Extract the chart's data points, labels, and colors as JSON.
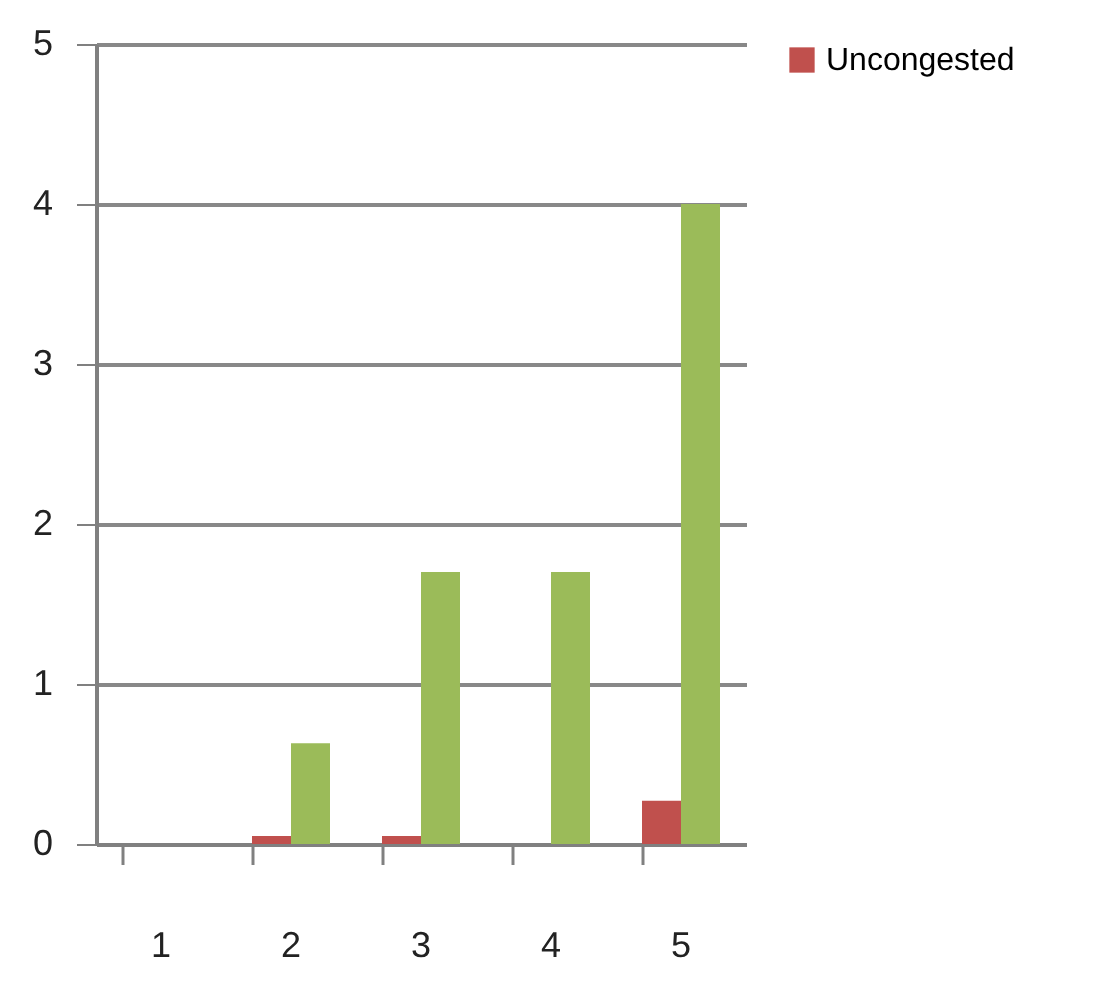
{
  "chart_data": {
    "type": "bar",
    "categories": [
      "1",
      "2",
      "3",
      "4",
      "5"
    ],
    "series": [
      {
        "name": "Uncongested",
        "color": "#c0504d",
        "values": [
          0,
          0.05,
          0.05,
          0,
          0.27
        ]
      },
      {
        "color": "#9bbb59",
        "values": [
          0,
          0.63,
          1.7,
          1.7,
          4.0
        ]
      }
    ],
    "ylim": [
      0,
      5
    ],
    "yticks": [
      0,
      1,
      2,
      3,
      4,
      5
    ],
    "grid": "y",
    "legend": "right"
  }
}
